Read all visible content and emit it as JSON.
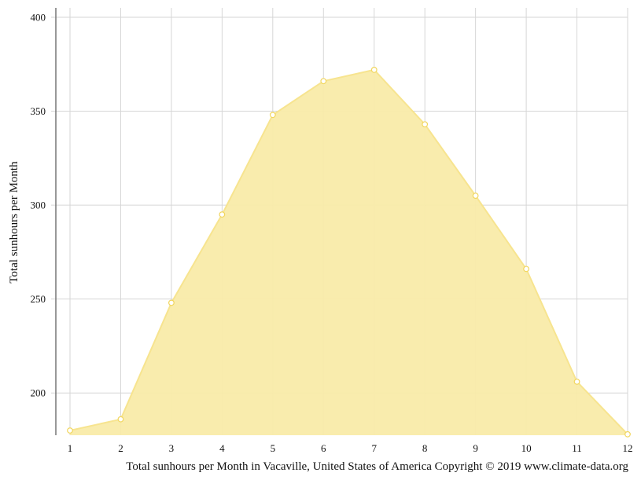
{
  "chart_data": {
    "type": "area",
    "title": "",
    "xlabel": "Total sunhours per Month in Vacaville, United States of America Copyright © 2019 www.climate-data.org",
    "ylabel": "Total sunhours per Month",
    "x": [
      1,
      2,
      3,
      4,
      5,
      6,
      7,
      8,
      9,
      10,
      11,
      12
    ],
    "values": [
      180,
      186,
      248,
      295,
      348,
      366,
      372,
      343,
      305,
      266,
      206,
      178
    ],
    "xlim": [
      1,
      12
    ],
    "ylim": [
      177.5,
      405
    ],
    "y_ticks": [
      200,
      250,
      300,
      350,
      400
    ],
    "grid": true,
    "colors": {
      "fill": "#f9eba9",
      "line": "#f7e48f",
      "marker_stroke": "#f1d65e",
      "grid": "#d6d6d6",
      "axis": "#777777"
    }
  }
}
